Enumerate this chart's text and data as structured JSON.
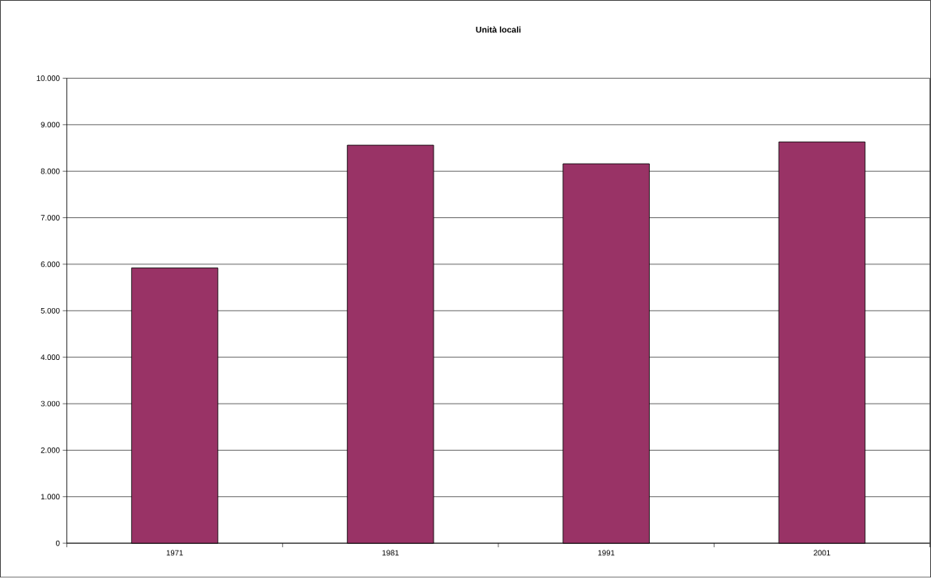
{
  "chart_data": {
    "type": "bar",
    "title": "Unità locali",
    "categories": [
      "1971",
      "1981",
      "1991",
      "2001"
    ],
    "values": [
      5920,
      8560,
      8160,
      8630
    ],
    "color": "#993366",
    "ylim": [
      0,
      10000
    ],
    "yticks": [
      {
        "value": 0,
        "label": "0"
      },
      {
        "value": 1000,
        "label": "1.000"
      },
      {
        "value": 2000,
        "label": "2.000"
      },
      {
        "value": 3000,
        "label": "3.000"
      },
      {
        "value": 4000,
        "label": "4.000"
      },
      {
        "value": 5000,
        "label": "5.000"
      },
      {
        "value": 6000,
        "label": "6.000"
      },
      {
        "value": 7000,
        "label": "7.000"
      },
      {
        "value": 8000,
        "label": "8.000"
      },
      {
        "value": 9000,
        "label": "9.000"
      },
      {
        "value": 10000,
        "label": "10.000"
      }
    ],
    "grid": "y"
  }
}
